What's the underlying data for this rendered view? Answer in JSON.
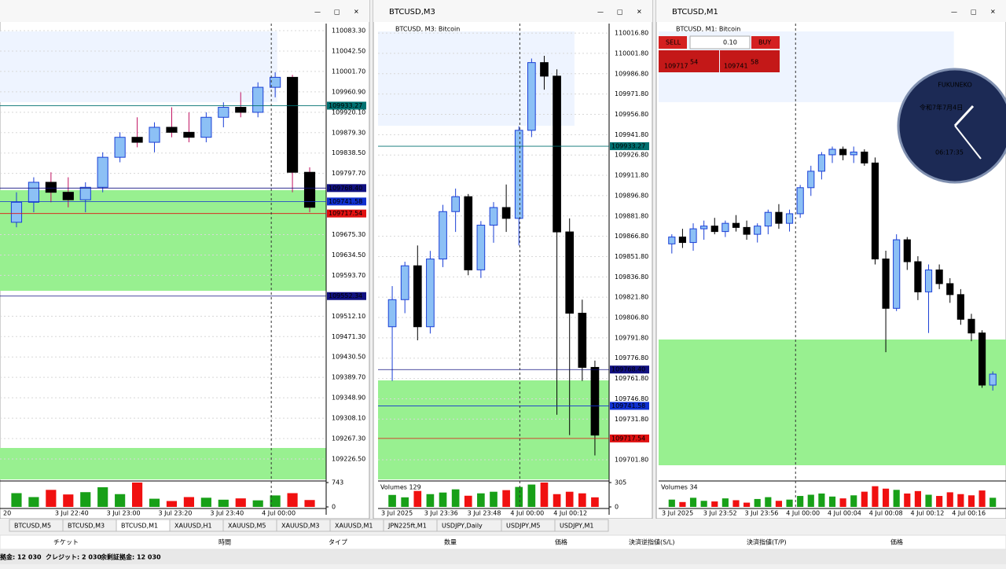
{
  "panels": [
    {
      "title": null,
      "subtitle": null,
      "ylim": [
        109185.6,
        110097.5
      ],
      "price_ticks": [
        {
          "value": 110083.3,
          "label": "110083.30"
        },
        {
          "value": 110042.5,
          "label": "110042.50"
        },
        {
          "value": 110001.7,
          "label": "110001.70"
        },
        {
          "value": 109960.9,
          "label": "109960.90"
        },
        {
          "value": 109920.1,
          "label": "109920.10"
        },
        {
          "value": 109879.3,
          "label": "109879.30"
        },
        {
          "value": 109838.5,
          "label": "109838.50"
        },
        {
          "value": 109797.7,
          "label": "109797.70"
        },
        {
          "value": 109675.3,
          "label": "109675.30"
        },
        {
          "value": 109634.5,
          "label": "109634.50"
        },
        {
          "value": 109593.7,
          "label": "109593.70"
        },
        {
          "value": 109512.1,
          "label": "109512.10"
        },
        {
          "value": 109471.3,
          "label": "109471.30"
        },
        {
          "value": 109430.5,
          "label": "109430.50"
        },
        {
          "value": 109389.7,
          "label": "109389.70"
        },
        {
          "value": 109348.9,
          "label": "109348.90"
        },
        {
          "value": 109308.1,
          "label": "109308.10"
        },
        {
          "value": 109267.3,
          "label": "109267.30"
        },
        {
          "value": 109226.5,
          "label": "109226.50"
        }
      ],
      "price_lines": [
        {
          "value": 109933.27,
          "color": "#007070"
        },
        {
          "value": {
            "value": 109768.4,
            "label": "109768.40"
          },
          "color": "#101080"
        },
        {
          "value": 109741.58,
          "color": "#1030d0"
        },
        {
          "value": 109717.54,
          "color": "#e01010"
        },
        {
          "value": 109552.34,
          "color": "#101080"
        }
      ],
      "candles": [
        [
          109700,
          109760,
          109690,
          109740
        ],
        [
          109740,
          109790,
          109720,
          109780
        ],
        [
          109780,
          109800,
          109740,
          109760
        ],
        [
          109760,
          109790,
          109730,
          109745
        ],
        [
          109745,
          109780,
          109720,
          109770
        ],
        [
          109770,
          109840,
          109760,
          109830
        ],
        [
          109830,
          109880,
          109820,
          109870
        ],
        [
          109870,
          109910,
          109850,
          109860
        ],
        [
          109860,
          109900,
          109840,
          109890
        ],
        [
          109890,
          109930,
          109870,
          109880
        ],
        [
          109880,
          109920,
          109860,
          109870
        ],
        [
          109870,
          109920,
          109860,
          109910
        ],
        [
          109910,
          109940,
          109890,
          109930
        ],
        [
          109930,
          109960,
          109910,
          109920
        ],
        [
          109920,
          109980,
          109910,
          109970
        ],
        [
          109970,
          110000,
          109950,
          109990
        ],
        [
          109990,
          109995,
          109760,
          109800
        ],
        [
          109800,
          109810,
          109720,
          109730
        ]
      ],
      "volume_label": null,
      "volume_lim": [
        0,
        743
      ],
      "volume_ticks": [
        0,
        743
      ],
      "volumes": [
        420,
        300,
        520,
        380,
        450,
        600,
        390,
        743,
        250,
        180,
        300,
        280,
        220,
        260,
        200,
        350,
        420,
        210
      ],
      "time_labels": [
        "20",
        "3 Jul 22:40",
        "3 Jul 23:00",
        "3 Jul 23:20",
        "3 Jul 23:40",
        "4 Jul 00:00"
      ]
    },
    {
      "title": "BTCUSD,M3",
      "subtitle": "BTCUSD, M3:  Bitcoin",
      "ylim": [
        109687.3,
        110023.8
      ],
      "price_ticks": [
        {
          "value": 110016.8,
          "label": "110016.80"
        },
        {
          "value": 110001.8,
          "label": "110001.80"
        },
        {
          "value": 109986.8,
          "label": "109986.80"
        },
        {
          "value": 109971.8,
          "label": "109971.80"
        },
        {
          "value": 109956.8,
          "label": "109956.80"
        },
        {
          "value": 109941.8,
          "label": "109941.80"
        },
        {
          "value": 109926.8,
          "label": "109926.80"
        },
        {
          "value": 109911.8,
          "label": "109911.80"
        },
        {
          "value": 109896.8,
          "label": "109896.80"
        },
        {
          "value": 109881.8,
          "label": "109881.80"
        },
        {
          "value": 109866.8,
          "label": "109866.80"
        },
        {
          "value": 109851.8,
          "label": "109851.80"
        },
        {
          "value": 109836.8,
          "label": "109836.80"
        },
        {
          "value": 109821.8,
          "label": "109821.80"
        },
        {
          "value": 109806.8,
          "label": "109806.80"
        },
        {
          "value": 109791.8,
          "label": "109791.80"
        },
        {
          "value": 109776.8,
          "label": "109776.80"
        },
        {
          "value": 109761.8,
          "label": "109761.80"
        },
        {
          "value": 109746.8,
          "label": "109746.80"
        },
        {
          "value": 109731.8,
          "label": "109731.80"
        },
        {
          "value": 109701.8,
          "label": "109701.80"
        }
      ],
      "price_lines": [
        {
          "value": 109933.27,
          "color": "#007070"
        },
        {
          "value": {
            "value": 109768.4,
            "label": "109768.40"
          },
          "color": "#101080"
        },
        {
          "value": 109741.58,
          "color": "#1030d0"
        },
        {
          "value": 109717.54,
          "color": "#e01010"
        }
      ],
      "candles": [
        [
          109800,
          109830,
          109760,
          109820
        ],
        [
          109820,
          109848,
          109810,
          109845
        ],
        [
          109845,
          109860,
          109790,
          109800
        ],
        [
          109800,
          109856,
          109795,
          109850
        ],
        [
          109850,
          109890,
          109844,
          109885
        ],
        [
          109885,
          109902,
          109870,
          109896
        ],
        [
          109896,
          109898,
          109838,
          109842
        ],
        [
          109842,
          109878,
          109836,
          109875
        ],
        [
          109875,
          109892,
          109862,
          109888
        ],
        [
          109888,
          109905,
          109870,
          109880
        ],
        [
          109880,
          109948,
          109860,
          109945
        ],
        [
          109945,
          109998,
          109940,
          109995
        ],
        [
          109995,
          110000,
          109975,
          109985
        ],
        [
          109985,
          109990,
          109735,
          109870
        ],
        [
          109870,
          109880,
          109720,
          109810
        ],
        [
          109810,
          109820,
          109760,
          109770
        ],
        [
          109770,
          109775,
          109705,
          109720
        ]
      ],
      "volume_label": "Volumes 129",
      "volume_lim": [
        0,
        305
      ],
      "volume_ticks": [
        0,
        305
      ],
      "volumes": [
        150,
        120,
        200,
        160,
        180,
        220,
        140,
        170,
        190,
        210,
        250,
        280,
        305,
        160,
        190,
        170,
        120
      ],
      "time_labels": [
        "3 Jul 2025",
        "3 Jul 23:36",
        "3 Jul 23:48",
        "4 Jul 00:00",
        "4 Jul 00:12"
      ]
    },
    {
      "title": "BTCUSD,M1",
      "subtitle": "BTCUSD, M1:  Bitcoin",
      "ylim": [
        109683.2,
        110015.7
      ],
      "price_ticks": [],
      "price_lines": [],
      "candles": [
        [
          109855,
          109862,
          109848,
          109860
        ],
        [
          109860,
          109866,
          109852,
          109856
        ],
        [
          109856,
          109870,
          109850,
          109866
        ],
        [
          109866,
          109872,
          109858,
          109868
        ],
        [
          109868,
          109874,
          109862,
          109864
        ],
        [
          109864,
          109872,
          109860,
          109870
        ],
        [
          109870,
          109876,
          109864,
          109867
        ],
        [
          109867,
          109872,
          109858,
          109862
        ],
        [
          109862,
          109870,
          109856,
          109868
        ],
        [
          109868,
          109880,
          109862,
          109878
        ],
        [
          109878,
          109884,
          109866,
          109870
        ],
        [
          109870,
          109880,
          109864,
          109877
        ],
        [
          109877,
          109898,
          109874,
          109896
        ],
        [
          109896,
          109912,
          109890,
          109908
        ],
        [
          109908,
          109922,
          109902,
          109920
        ],
        [
          109920,
          109926,
          109914,
          109924
        ],
        [
          109924,
          109926,
          109916,
          109920
        ],
        [
          109920,
          109926,
          109914,
          109922
        ],
        [
          109922,
          109924,
          109912,
          109914
        ],
        [
          109914,
          109918,
          109840,
          109844
        ],
        [
          109844,
          109850,
          109776,
          109808
        ],
        [
          109808,
          109862,
          109806,
          109858
        ],
        [
          109858,
          109860,
          109836,
          109842
        ],
        [
          109842,
          109846,
          109814,
          109820
        ],
        [
          109820,
          109840,
          109790,
          109836
        ],
        [
          109836,
          109840,
          109822,
          109826
        ],
        [
          109826,
          109830,
          109812,
          109818
        ],
        [
          109818,
          109822,
          109796,
          109800
        ],
        [
          109800,
          109804,
          109784,
          109790
        ],
        [
          109790,
          109792,
          109750,
          109752
        ],
        [
          109752,
          109762,
          109748,
          109760
        ]
      ],
      "volume_label": "Volumes 34",
      "volume_lim": [
        0,
        40
      ],
      "volume_ticks": [],
      "volumes": [
        12,
        8,
        15,
        10,
        9,
        14,
        11,
        7,
        13,
        16,
        10,
        12,
        18,
        20,
        22,
        17,
        14,
        19,
        25,
        34,
        30,
        28,
        22,
        26,
        20,
        18,
        24,
        21,
        19,
        27,
        15
      ],
      "time_labels": [
        "3 Jul 2025",
        "3 Jul 23:52",
        "3 Jul 23:56",
        "4 Jul 00:00",
        "4 Jul 00:04",
        "4 Jul 00:08",
        "4 Jul 00:12",
        "4 Jul 00:16"
      ]
    }
  ],
  "trade": {
    "sell": "SELL",
    "buy": "BUY",
    "volume": "0.10",
    "bid_main": "109717",
    "bid_big": "54",
    "ask_main": "109741",
    "ask_big": "58"
  },
  "clock": {
    "name": "FUKUNEKO",
    "date": "令和7年7月4日",
    "time": "06:17:35"
  },
  "tabs": [
    "BTCUSD,M5",
    "BTCUSD,M3",
    "BTCUSD,M1",
    "XAUUSD,H1",
    "XAUUSD,M5",
    "XAUUSD,M3",
    "XAUUSD,M1",
    "JPN225ft,M1",
    "USDJPY,Daily",
    "USDJPY,M5",
    "USDJPY,M1"
  ],
  "columns": [
    "チケット",
    "時間",
    "タイプ",
    "数量",
    "価格",
    "決済逆指値(S/L)",
    "決済指値(T/P)",
    "価格"
  ],
  "status": [
    "拠金: 12 030",
    "クレジット: 2 030",
    "余剰証拠金: 12 030"
  ]
}
